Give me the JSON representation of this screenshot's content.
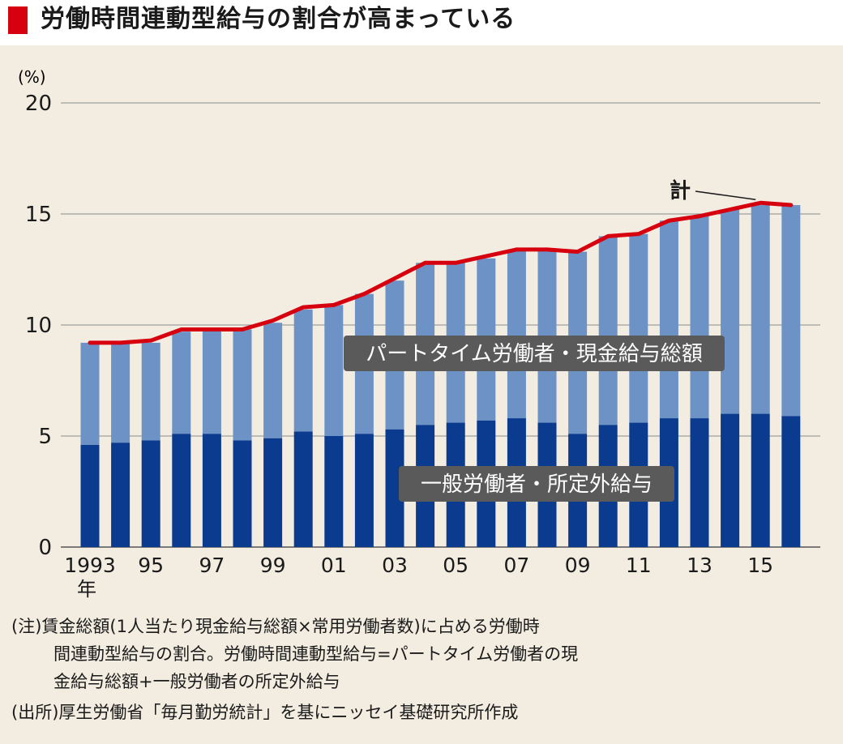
{
  "title": "労働時間連動型給与の割合が高まっている",
  "colors": {
    "accent": "#d7000f",
    "dark_bar": "#0a3b8e",
    "light_bar": "#6d92c5",
    "line": "#d7000f",
    "background": "#f3ede1",
    "label_bg": "#5a5a5a"
  },
  "chart_data": {
    "type": "bar",
    "stacked": true,
    "unit_label": "(%)",
    "ylim": [
      0,
      20
    ],
    "yticks": [
      "0",
      "5",
      "10",
      "15",
      "20"
    ],
    "grid": true,
    "x": [
      1993,
      1994,
      1995,
      1996,
      1997,
      1998,
      1999,
      2000,
      2001,
      2002,
      2003,
      2004,
      2005,
      2006,
      2007,
      2008,
      2009,
      2010,
      2011,
      2012,
      2013,
      2014,
      2015,
      2016
    ],
    "xtick_labels": [
      {
        "index": 0,
        "label": "1993",
        "sub": "年"
      },
      {
        "index": 2,
        "label": "95"
      },
      {
        "index": 4,
        "label": "97"
      },
      {
        "index": 6,
        "label": "99"
      },
      {
        "index": 8,
        "label": "01"
      },
      {
        "index": 10,
        "label": "03"
      },
      {
        "index": 12,
        "label": "05"
      },
      {
        "index": 14,
        "label": "07"
      },
      {
        "index": 16,
        "label": "09"
      },
      {
        "index": 18,
        "label": "11"
      },
      {
        "index": 20,
        "label": "13"
      },
      {
        "index": 22,
        "label": "15"
      }
    ],
    "series": [
      {
        "name": "一般労働者・所定外給与",
        "values": [
          4.6,
          4.7,
          4.8,
          5.1,
          5.1,
          4.8,
          4.9,
          5.2,
          5.0,
          5.1,
          5.3,
          5.5,
          5.6,
          5.7,
          5.8,
          5.6,
          5.1,
          5.5,
          5.6,
          5.8,
          5.8,
          6.0,
          6.0,
          5.9
        ]
      },
      {
        "name": "パートタイム労働者・現金給与総額",
        "values": [
          4.6,
          4.5,
          4.4,
          4.6,
          4.7,
          5.0,
          5.2,
          5.5,
          5.9,
          6.3,
          6.7,
          7.3,
          7.2,
          7.3,
          7.6,
          7.8,
          8.2,
          8.5,
          8.5,
          8.9,
          9.1,
          9.2,
          9.4,
          9.5
        ]
      },
      {
        "name": "計",
        "type": "line",
        "values": [
          9.2,
          9.2,
          9.3,
          9.8,
          9.8,
          9.8,
          10.2,
          10.8,
          10.9,
          11.4,
          12.1,
          12.8,
          12.8,
          13.1,
          13.4,
          13.4,
          13.3,
          14.0,
          14.1,
          14.7,
          14.9,
          15.2,
          15.5,
          15.4
        ]
      }
    ]
  },
  "notes": [
    "(注)賃金総額(1人当たり現金給与総額×常用労働者数)に占める労働時",
    "間連動型給与の割合。労働時間連動型給与=パートタイム労働者の現",
    "金給与総額+一般労働者の所定外給与",
    "(出所)厚生労働省「毎月勤労統計」を基にニッセイ基礎研究所作成"
  ]
}
